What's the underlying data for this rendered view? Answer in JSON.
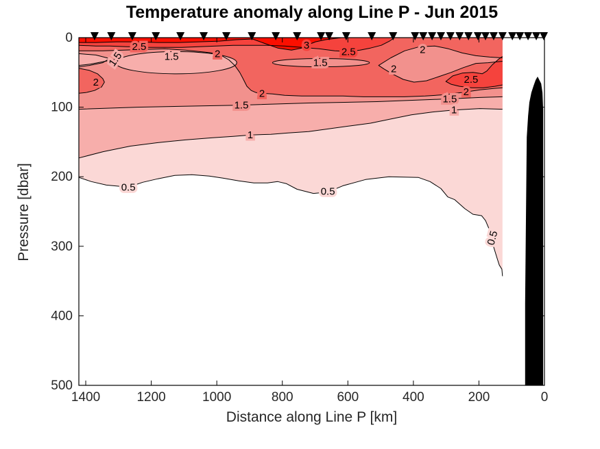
{
  "title": "Temperature anomaly along Line P - Jun 2015",
  "xlabel": "Distance along Line P [km]",
  "ylabel": "Pressure [dbar]",
  "chart_data": {
    "type": "filled_contour",
    "title": "Temperature anomaly along Line P - Jun 2015",
    "xlabel": "Distance along Line P [km]",
    "ylabel": "Pressure [dbar]",
    "x_axis": {
      "ticks": [
        1400,
        1200,
        1000,
        800,
        600,
        400,
        200,
        0
      ],
      "range": [
        1421,
        0
      ],
      "reversed": true,
      "unit": "km"
    },
    "y_axis": {
      "ticks": [
        0,
        100,
        200,
        300,
        400,
        500
      ],
      "range": [
        0,
        500
      ],
      "downward": true,
      "unit": "dbar"
    },
    "levels": [
      0.5,
      1,
      1.5,
      2,
      2.5,
      3
    ],
    "grid": false,
    "legend": "none",
    "band_colors": {
      "lt05": "#ffffff",
      "b05": "#fbd8d6",
      "b1": "#f7aeab",
      "b15": "#f2918d",
      "b2": "#f2655f",
      "b25": "#f5433d",
      "b3": "#fb0f00"
    },
    "line_color": "#000000",
    "data_edge_km": 128,
    "stations_km": [
      1373,
      1322,
      1258,
      1186,
      1111,
      1040,
      971,
      893,
      820,
      755,
      682,
      657,
      605,
      527,
      462,
      395,
      370,
      343,
      316,
      287,
      259,
      232,
      203,
      180,
      155,
      128,
      98,
      75,
      50,
      25,
      2
    ],
    "fills": [
      {
        "name": "band-ge-0.5",
        "color": "b05",
        "topClose": true,
        "pts": [
          [
            1421,
            201
          ],
          [
            1383,
            207
          ],
          [
            1337,
            212
          ],
          [
            1270,
            215
          ],
          [
            1226,
            208
          ],
          [
            1180,
            203
          ],
          [
            1128,
            198
          ],
          [
            1076,
            197
          ],
          [
            1023,
            199
          ],
          [
            981,
            202
          ],
          [
            933,
            206
          ],
          [
            887,
            209
          ],
          [
            845,
            209
          ],
          [
            814,
            207
          ],
          [
            787,
            210
          ],
          [
            755,
            218
          ],
          [
            705,
            224
          ],
          [
            661,
            222
          ],
          [
            615,
            213
          ],
          [
            546,
            204
          ],
          [
            475,
            200
          ],
          [
            385,
            201
          ],
          [
            349,
            207
          ],
          [
            316,
            217
          ],
          [
            295,
            229
          ],
          [
            274,
            233
          ],
          [
            243,
            246
          ],
          [
            218,
            254
          ],
          [
            192,
            256
          ],
          [
            180,
            263
          ],
          [
            170,
            274
          ],
          [
            159,
            295
          ],
          [
            144,
            318
          ],
          [
            138,
            327
          ],
          [
            130,
            333
          ],
          [
            128,
            343
          ]
        ]
      },
      {
        "name": "band-ge-1",
        "color": "b1",
        "topClose": true,
        "pts": [
          [
            1421,
            173
          ],
          [
            1347,
            164
          ],
          [
            1264,
            156
          ],
          [
            1180,
            151
          ],
          [
            1096,
            147
          ],
          [
            1013,
            144
          ],
          [
            950,
            142
          ],
          [
            898,
            140
          ],
          [
            835,
            139
          ],
          [
            783,
            137
          ],
          [
            720,
            135
          ],
          [
            657,
            131
          ],
          [
            594,
            127
          ],
          [
            531,
            123
          ],
          [
            469,
            117
          ],
          [
            406,
            111
          ],
          [
            343,
            107
          ],
          [
            276,
            104
          ],
          [
            197,
            102
          ],
          [
            128,
            103
          ]
        ]
      },
      {
        "name": "band-ge-1.5",
        "color": "b15",
        "topClose": true,
        "pts": [
          [
            1421,
            103
          ],
          [
            1243,
            100
          ],
          [
            1034,
            98
          ],
          [
            925,
            97
          ],
          [
            720,
            94
          ],
          [
            511,
            92
          ],
          [
            343,
            89
          ],
          [
            289,
            88
          ],
          [
            197,
            86
          ],
          [
            128,
            85
          ]
        ]
      },
      {
        "name": "band-ge-2",
        "color": "b2",
        "topClose": true,
        "pts": [
          [
            1421,
            19
          ],
          [
            1348,
            19
          ],
          [
            1285,
            18
          ],
          [
            1222,
            17
          ],
          [
            1159,
            16
          ],
          [
            1096,
            18
          ],
          [
            1034,
            21
          ],
          [
            998,
            23
          ],
          [
            981,
            27
          ],
          [
            963,
            32
          ],
          [
            945,
            40
          ],
          [
            930,
            50
          ],
          [
            921,
            58
          ],
          [
            908,
            70
          ],
          [
            895,
            76
          ],
          [
            880,
            79
          ],
          [
            862,
            80
          ],
          [
            830,
            81
          ],
          [
            793,
            83
          ],
          [
            741,
            84
          ],
          [
            678,
            84
          ],
          [
            615,
            84
          ],
          [
            552,
            85
          ],
          [
            490,
            85
          ],
          [
            427,
            85
          ],
          [
            364,
            84
          ],
          [
            301,
            82
          ],
          [
            239,
            78
          ],
          [
            197,
            75
          ],
          [
            155,
            73
          ],
          [
            128,
            72
          ]
        ]
      },
      {
        "name": "band-ge-2.5",
        "color": "b25",
        "topClose": true,
        "pts": [
          [
            1421,
            11
          ],
          [
            1369,
            12
          ],
          [
            1327,
            12
          ],
          [
            1274,
            13
          ],
          [
            1237,
            13
          ],
          [
            1212,
            14
          ],
          [
            1159,
            14
          ],
          [
            1107,
            14
          ],
          [
            1055,
            13
          ],
          [
            1002,
            12
          ],
          [
            950,
            11
          ],
          [
            898,
            11
          ],
          [
            845,
            11
          ],
          [
            793,
            12
          ],
          [
            741,
            14
          ],
          [
            688,
            16
          ],
          [
            640,
            19
          ],
          [
            598,
            20
          ],
          [
            563,
            18
          ],
          [
            531,
            15
          ],
          [
            498,
            11
          ],
          [
            473,
            5
          ],
          [
            458,
            0
          ]
        ]
      },
      {
        "name": "band-ge-3",
        "color": "b3",
        "topClose": true,
        "pts": [
          [
            1421,
            7
          ],
          [
            1369,
            7
          ],
          [
            1306,
            6
          ],
          [
            1243,
            6
          ],
          [
            1180,
            7
          ],
          [
            1117,
            7
          ],
          [
            1055,
            6
          ],
          [
            992,
            5
          ],
          [
            940,
            3
          ],
          [
            891,
            2
          ],
          [
            856,
            8
          ],
          [
            814,
            15
          ],
          [
            772,
            18
          ],
          [
            741,
            15
          ],
          [
            726,
            11
          ],
          [
            699,
            6
          ],
          [
            668,
            3
          ],
          [
            636,
            1
          ],
          [
            619,
            0
          ]
        ]
      },
      {
        "name": "patch-left-1-1.5",
        "color": "b1",
        "topClose": false,
        "pts": [
          [
            1421,
            23
          ],
          [
            1369,
            25
          ],
          [
            1327,
            30
          ],
          [
            1348,
            36
          ],
          [
            1389,
            40
          ],
          [
            1421,
            42
          ]
        ]
      },
      {
        "name": "lens-upper-left-1-1.5",
        "color": "b1",
        "ellipse": [
          1124,
          36,
          185,
          16
        ]
      },
      {
        "name": "blob-left-2-2.5",
        "color": "b2",
        "topClose": false,
        "pts": [
          [
            1421,
            44
          ],
          [
            1389,
            47
          ],
          [
            1364,
            52
          ],
          [
            1348,
            59
          ],
          [
            1343,
            64
          ],
          [
            1352,
            71
          ],
          [
            1373,
            76
          ],
          [
            1400,
            79
          ],
          [
            1421,
            80
          ]
        ]
      },
      {
        "name": "lens-mid-1.5-2",
        "color": "b15",
        "ellipse": [
          682,
          36,
          148,
          6
        ]
      },
      {
        "name": "wedge-right-1.5-2",
        "color": "b15",
        "topClose": false,
        "pts": [
          [
            128,
            29
          ],
          [
            167,
            28
          ],
          [
            209,
            26
          ],
          [
            251,
            22
          ],
          [
            293,
            16
          ],
          [
            335,
            12
          ],
          [
            381,
            13
          ],
          [
            427,
            19
          ],
          [
            469,
            29
          ],
          [
            506,
            40
          ],
          [
            490,
            45
          ],
          [
            465,
            52
          ],
          [
            431,
            60
          ],
          [
            398,
            64
          ],
          [
            360,
            62
          ],
          [
            322,
            56
          ],
          [
            285,
            50
          ],
          [
            247,
            43
          ],
          [
            209,
            37
          ],
          [
            172,
            36
          ],
          [
            128,
            34
          ]
        ]
      },
      {
        "name": "blob-right-2.5-3",
        "color": "b25",
        "topClose": false,
        "pts": [
          [
            128,
            27
          ],
          [
            140,
            31
          ],
          [
            159,
            39
          ],
          [
            176,
            48
          ],
          [
            190,
            52
          ],
          [
            218,
            50
          ],
          [
            251,
            51
          ],
          [
            280,
            55
          ],
          [
            301,
            63
          ],
          [
            285,
            67
          ],
          [
            259,
            70
          ],
          [
            222,
            72
          ],
          [
            186,
            72
          ],
          [
            151,
            70
          ],
          [
            128,
            68
          ]
        ]
      }
    ],
    "lines": [
      {
        "name": "contour-0.5",
        "ref": "band-ge-0.5"
      },
      {
        "name": "contour-1",
        "ref": "band-ge-1"
      },
      {
        "name": "contour-1.5",
        "ref": "band-ge-1.5"
      },
      {
        "name": "contour-2",
        "ref": "band-ge-2"
      },
      {
        "name": "contour-2.5",
        "ref": "band-ge-2.5"
      },
      {
        "name": "contour-3",
        "ref": "band-ge-3"
      },
      {
        "name": "line-patch-left",
        "ref": "patch-left-1-1.5"
      },
      {
        "name": "line-blob-left",
        "ref": "blob-left-2-2.5"
      },
      {
        "name": "line-wedge-right",
        "ref": "wedge-right-1.5-2"
      },
      {
        "name": "line-blob-right",
        "ref": "blob-right-2.5-3"
      },
      {
        "name": "line-snake-1.5",
        "pts": [
          [
            1297,
            30
          ],
          [
            1340,
            34
          ],
          [
            1385,
            38
          ],
          [
            1421,
            40
          ]
        ]
      }
    ],
    "contour_labels": [
      {
        "t": "1.5",
        "km": 1310,
        "db": 31,
        "rot": -55,
        "bg": "b1"
      },
      {
        "t": "2.5",
        "km": 1237,
        "db": 13,
        "bg": "b2"
      },
      {
        "t": "1.5",
        "km": 1138,
        "db": 27,
        "bg": "b1"
      },
      {
        "t": "2",
        "km": 998,
        "db": 23,
        "bg": "b2"
      },
      {
        "t": "3",
        "km": 726,
        "db": 11,
        "bg": "b25"
      },
      {
        "t": "2.5",
        "km": 598,
        "db": 20,
        "bg": "b25"
      },
      {
        "t": "2",
        "km": 372,
        "db": 17,
        "bg": "b15"
      },
      {
        "t": "2",
        "km": 460,
        "db": 45,
        "bg": "b15"
      },
      {
        "t": "1.5",
        "km": 684,
        "db": 36,
        "bg": "b15"
      },
      {
        "t": "2.5",
        "km": 224,
        "db": 60,
        "bg": "b25"
      },
      {
        "t": "2",
        "km": 239,
        "db": 78,
        "bg": "b2"
      },
      {
        "t": "1.5",
        "km": 289,
        "db": 88,
        "bg": "b15"
      },
      {
        "t": "2",
        "km": 1369,
        "db": 64,
        "bg": "b2"
      },
      {
        "t": "2",
        "km": 862,
        "db": 80,
        "bg": "b2"
      },
      {
        "t": "1.5",
        "km": 925,
        "db": 97,
        "bg": "b15"
      },
      {
        "t": "1",
        "km": 276,
        "db": 104,
        "bg": "b1"
      },
      {
        "t": "1",
        "km": 898,
        "db": 140,
        "bg": "b1"
      },
      {
        "t": "0.5",
        "km": 1270,
        "db": 215,
        "bg": "b05"
      },
      {
        "t": "0.5",
        "km": 661,
        "db": 221,
        "bg": "b05"
      },
      {
        "t": "0.5",
        "km": 159,
        "db": 288,
        "rot": -75,
        "bg": "b05"
      }
    ],
    "bathymetry": [
      [
        21,
        56
      ],
      [
        10,
        66
      ],
      [
        6,
        79
      ],
      [
        4,
        103
      ],
      [
        4,
        500
      ],
      [
        59,
        500
      ],
      [
        59,
        382
      ],
      [
        56,
        241
      ],
      [
        54,
        143
      ],
      [
        50,
        113
      ],
      [
        46,
        93
      ],
      [
        40,
        79
      ],
      [
        33,
        69
      ],
      [
        27,
        61
      ]
    ]
  }
}
